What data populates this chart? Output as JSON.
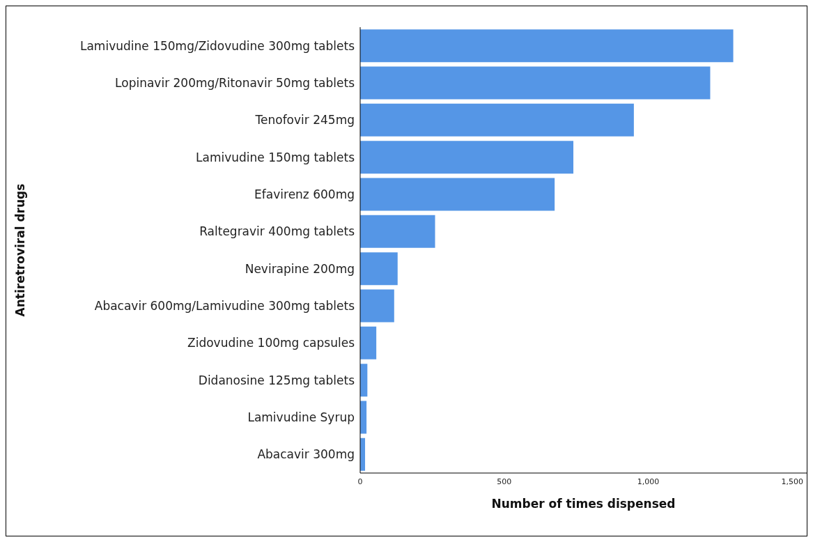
{
  "chart_data": {
    "type": "bar",
    "orientation": "horizontal",
    "xlabel": "Number of times dispensed",
    "ylabel": "Antiretroviral drugs",
    "categories": [
      "Lamivudine 150mg/Zidovudine 300mg tablets",
      "Lopinavir 200mg/Ritonavir 50mg tablets",
      "Tenofovir 245mg",
      "Lamivudine 150mg tablets",
      "Efavirenz 600mg",
      "Raltegravir 400mg tablets",
      "Nevirapine 200mg",
      "Abacavir 600mg/Lamivudine 300mg tablets",
      "Zidovudine 100mg capsules",
      "Didanosine 125mg tablets",
      "Lamivudine Syrup",
      "Abacavir 300mg"
    ],
    "values": [
      1295,
      1215,
      950,
      740,
      675,
      260,
      130,
      118,
      56,
      25,
      22,
      17
    ],
    "color": "#5596e6",
    "xlim": [
      0,
      1550
    ],
    "xticks": [
      0,
      500,
      {
        "value": 1000,
        "label": "1,000"
      },
      {
        "value": 1500,
        "label": "1,500"
      }
    ],
    "grid": false,
    "legend": false
  }
}
